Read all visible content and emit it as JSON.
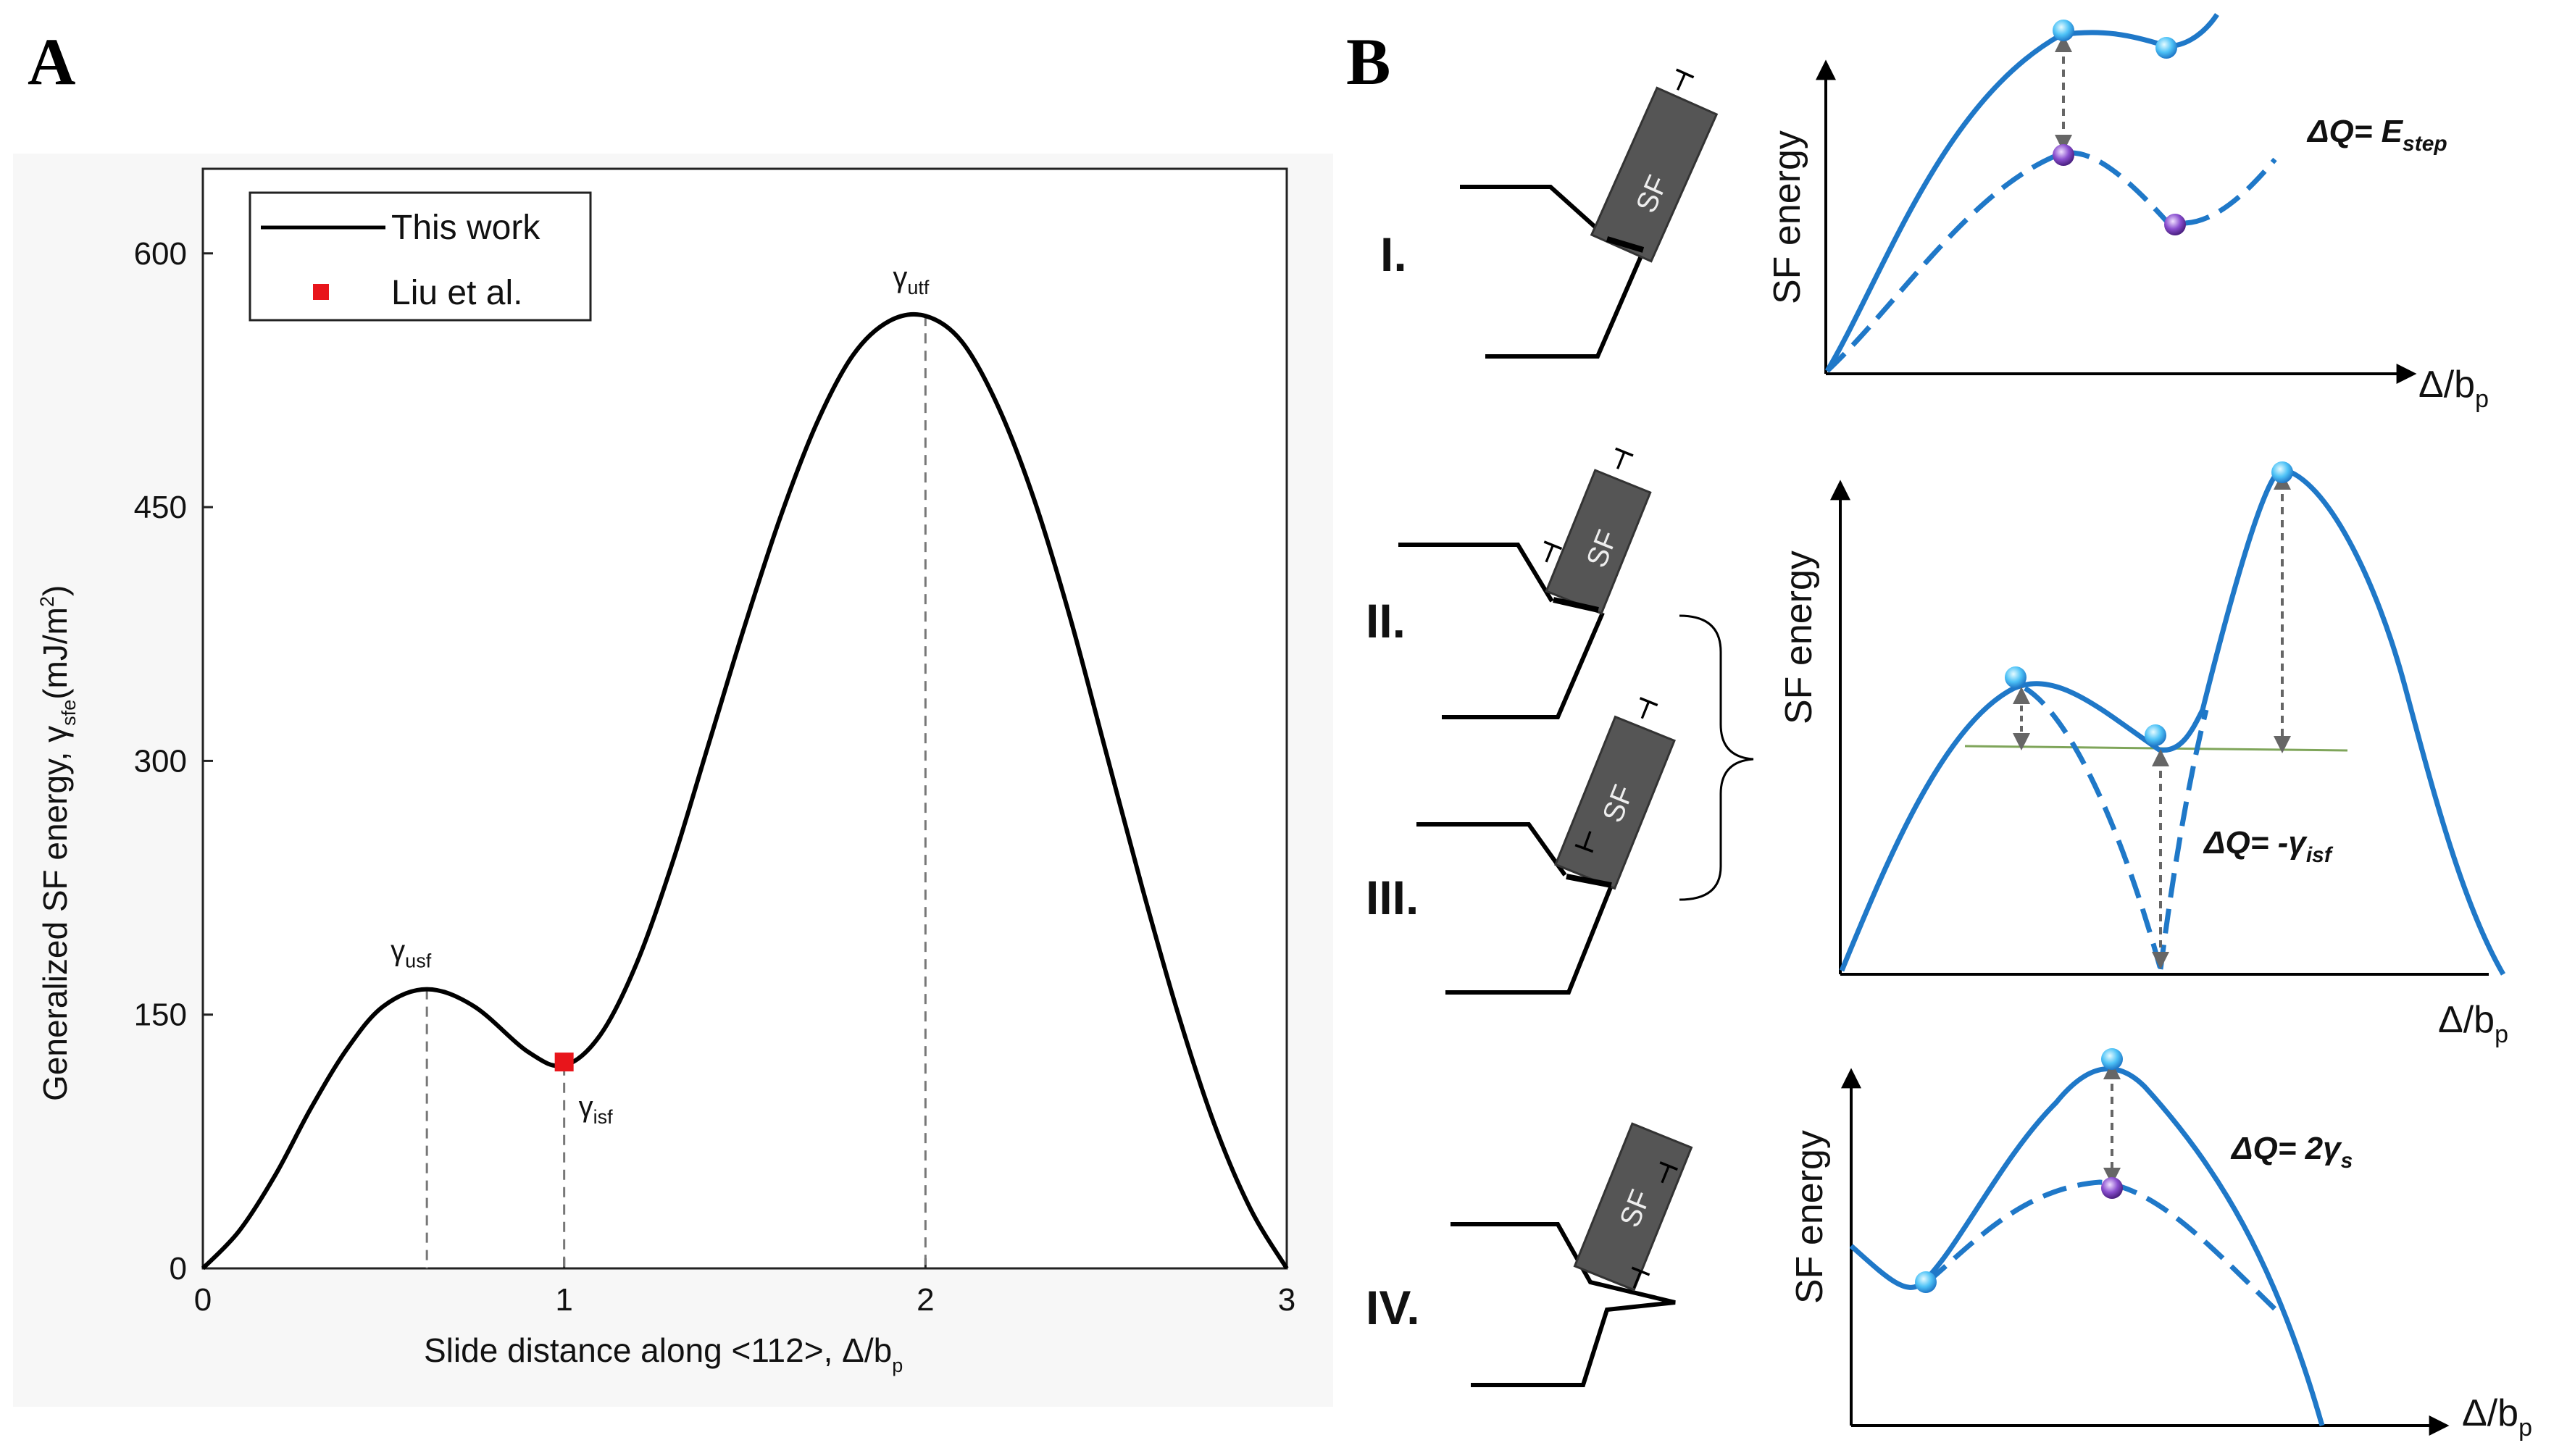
{
  "panel_a": {
    "letter": "A",
    "ylabel": "Generalized SF energy, γ",
    "ylabel_sub": "sfe",
    "ylabel_unit": "(mJ/m",
    "ylabel_sup": "2",
    "ylabel_close": ")",
    "xlabel": "Slide distance along <112>, Δ/b",
    "xlabel_sub": "p",
    "annotations": [
      {
        "sym": "γ",
        "sub": "usf"
      },
      {
        "sym": "γ",
        "sub": "isf"
      },
      {
        "sym": "γ",
        "sub": "utf"
      }
    ],
    "legend": [
      {
        "label": "This work",
        "marker": "line",
        "color": "#000000"
      },
      {
        "label": "Liu et al.",
        "marker": "square",
        "color": "#e8151b"
      }
    ]
  },
  "chart_data": [
    {
      "type": "line",
      "xlim": [
        0,
        3
      ],
      "ylim": [
        0,
        650
      ],
      "x_ticks": [
        0,
        1,
        2,
        3
      ],
      "y_ticks": [
        0,
        150,
        300,
        450,
        600
      ],
      "grid": false,
      "legend_position": "top-left",
      "series": [
        {
          "name": "This work",
          "color": "#000000",
          "x": [
            0,
            0.1,
            0.2,
            0.3,
            0.4,
            0.5,
            0.62,
            0.75,
            0.9,
            1.0,
            1.1,
            1.2,
            1.3,
            1.4,
            1.5,
            1.6,
            1.7,
            1.8,
            1.9,
            2.0,
            2.1,
            2.2,
            2.3,
            2.4,
            2.5,
            2.6,
            2.7,
            2.8,
            2.9,
            3.0
          ],
          "y": [
            0,
            22,
            55,
            95,
            130,
            155,
            165,
            155,
            128,
            120,
            138,
            180,
            240,
            310,
            380,
            445,
            500,
            540,
            560,
            563,
            548,
            510,
            455,
            385,
            305,
            225,
            150,
            85,
            35,
            0
          ]
        },
        {
          "name": "Liu et al.",
          "color": "#e8151b",
          "x": [
            1.0
          ],
          "y": [
            122
          ]
        }
      ],
      "markers": [
        {
          "label": "γusf",
          "x": 0.62,
          "y": 165
        },
        {
          "label": "γisf",
          "x": 1.0,
          "y": 120
        },
        {
          "label": "γutf",
          "x": 2.0,
          "y": 563
        }
      ]
    }
  ],
  "panel_b": {
    "letter": "B",
    "stages": [
      {
        "roman": "I.",
        "sf": "SF"
      },
      {
        "roman": "II.",
        "sf": "SF"
      },
      {
        "roman": "III.",
        "sf": "SF"
      },
      {
        "roman": "IV.",
        "sf": "SF"
      }
    ],
    "plots": [
      {
        "ylabel": "SF energy",
        "xlabel": "Δ/b",
        "xlabel_sub": "p",
        "dq_main": "ΔQ= E",
        "dq_sub": "step"
      },
      {
        "ylabel": "SF energy",
        "xlabel": "Δ/b",
        "xlabel_sub": "p",
        "dq_main": "ΔQ= -γ",
        "dq_sub": "isf"
      },
      {
        "ylabel": "SF energy",
        "xlabel": "Δ/b",
        "xlabel_sub": "p",
        "dq_main": "ΔQ= 2γ",
        "dq_sub": "s"
      }
    ],
    "dislocation_symbol": "┬",
    "colors": {
      "curve": "#1f78c8",
      "dot": "#4fc3f7",
      "dot_purple": "#7b3fb0",
      "guide": "#7fa55a",
      "arrow": "#666666"
    }
  }
}
